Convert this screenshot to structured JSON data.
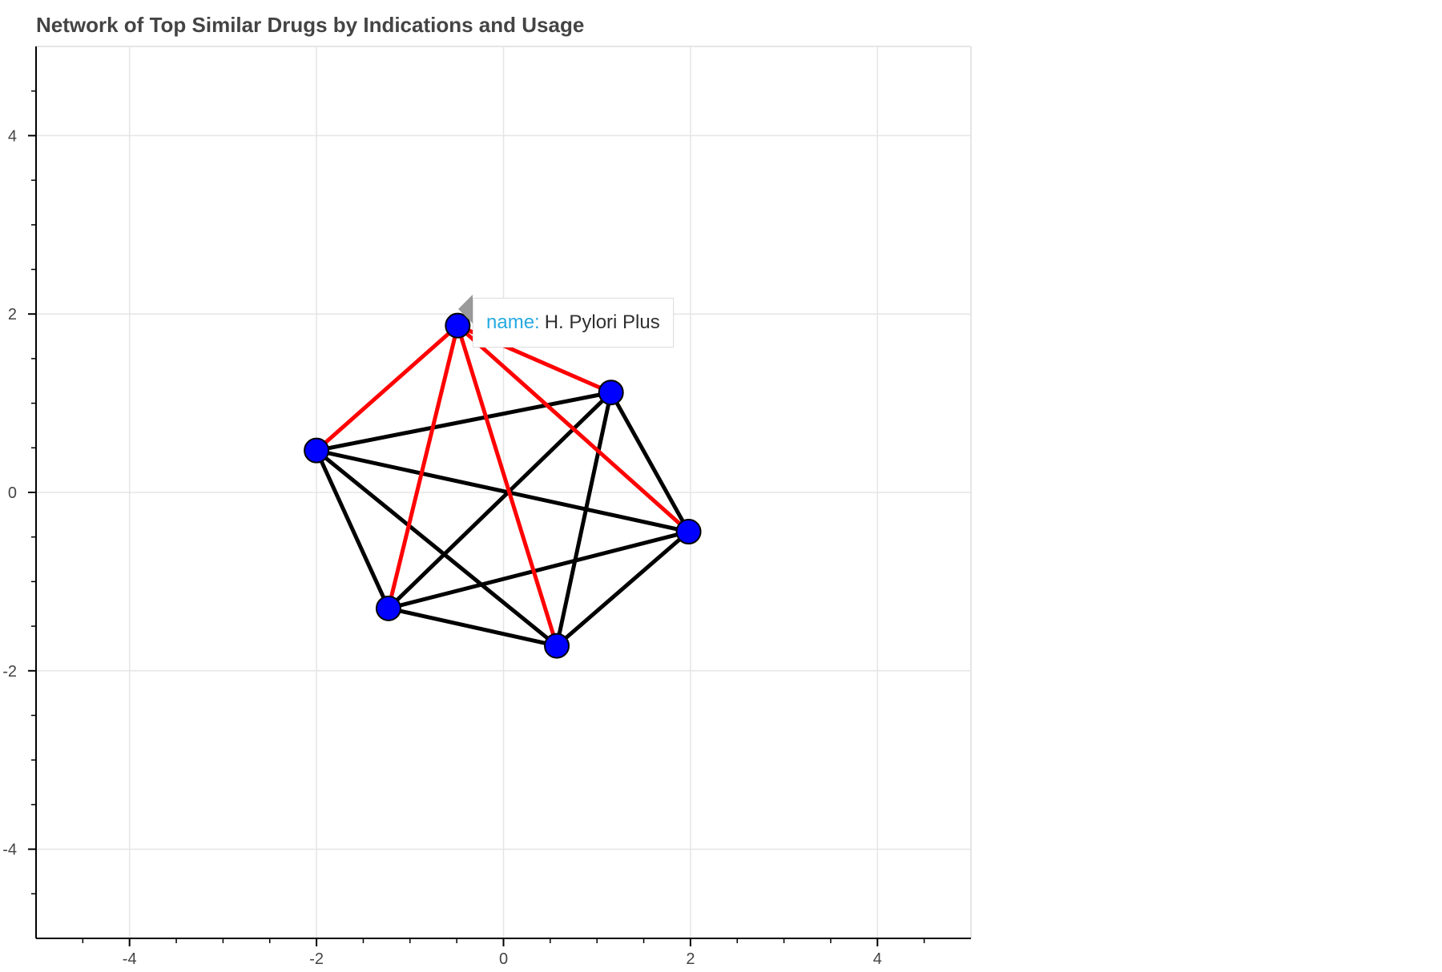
{
  "chart_data": {
    "type": "network",
    "title": "Network of Top Similar Drugs by Indications and Usage",
    "xlim": [
      -5,
      5
    ],
    "ylim": [
      -5,
      5
    ],
    "x_ticks": [
      -4,
      -2,
      0,
      2,
      4
    ],
    "y_ticks": [
      -4,
      -2,
      0,
      2,
      4
    ],
    "grid": true,
    "colors": {
      "node_fill": "#0000ff",
      "node_stroke": "#000000",
      "edge_default": "#000000",
      "edge_highlight": "#ff0000",
      "grid": "#e5e5e5",
      "axis": "#000000"
    },
    "nodes": [
      {
        "id": 0,
        "x": -0.49,
        "y": 1.87
      },
      {
        "id": 1,
        "x": 1.15,
        "y": 1.12
      },
      {
        "id": 2,
        "x": -2.0,
        "y": 0.47
      },
      {
        "id": 3,
        "x": 1.98,
        "y": -0.44
      },
      {
        "id": 4,
        "x": -1.23,
        "y": -1.3
      },
      {
        "id": 5,
        "x": 0.57,
        "y": -1.72
      }
    ],
    "edges": [
      {
        "source": 0,
        "target": 1,
        "highlight": true
      },
      {
        "source": 0,
        "target": 2,
        "highlight": true
      },
      {
        "source": 0,
        "target": 3,
        "highlight": true
      },
      {
        "source": 0,
        "target": 4,
        "highlight": true
      },
      {
        "source": 0,
        "target": 5,
        "highlight": true
      },
      {
        "source": 1,
        "target": 2,
        "highlight": false
      },
      {
        "source": 1,
        "target": 3,
        "highlight": false
      },
      {
        "source": 1,
        "target": 4,
        "highlight": false
      },
      {
        "source": 1,
        "target": 5,
        "highlight": false
      },
      {
        "source": 2,
        "target": 3,
        "highlight": false
      },
      {
        "source": 2,
        "target": 4,
        "highlight": false
      },
      {
        "source": 2,
        "target": 5,
        "highlight": false
      },
      {
        "source": 3,
        "target": 4,
        "highlight": false
      },
      {
        "source": 3,
        "target": 5,
        "highlight": false
      },
      {
        "source": 4,
        "target": 5,
        "highlight": false
      }
    ],
    "tooltip": {
      "key": "name:",
      "value": "H. Pylori Plus"
    }
  }
}
